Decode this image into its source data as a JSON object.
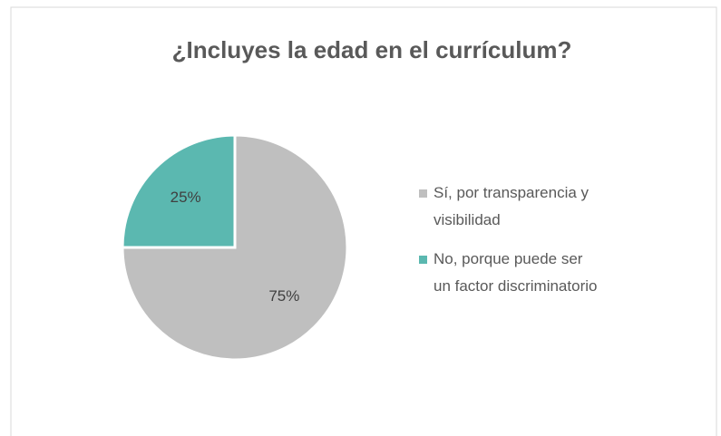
{
  "chart_data": {
    "type": "pie",
    "title": "¿Incluyes la edad en el currículum?",
    "categories": [
      "Sí, por transparencia y visibilidad",
      "No, porque puede ser un factor discriminatorio"
    ],
    "values": [
      75,
      25
    ],
    "value_labels": [
      "75%",
      "25%"
    ],
    "colors": [
      "#bfbfbf",
      "#5bb8b0"
    ],
    "legend": "right"
  }
}
